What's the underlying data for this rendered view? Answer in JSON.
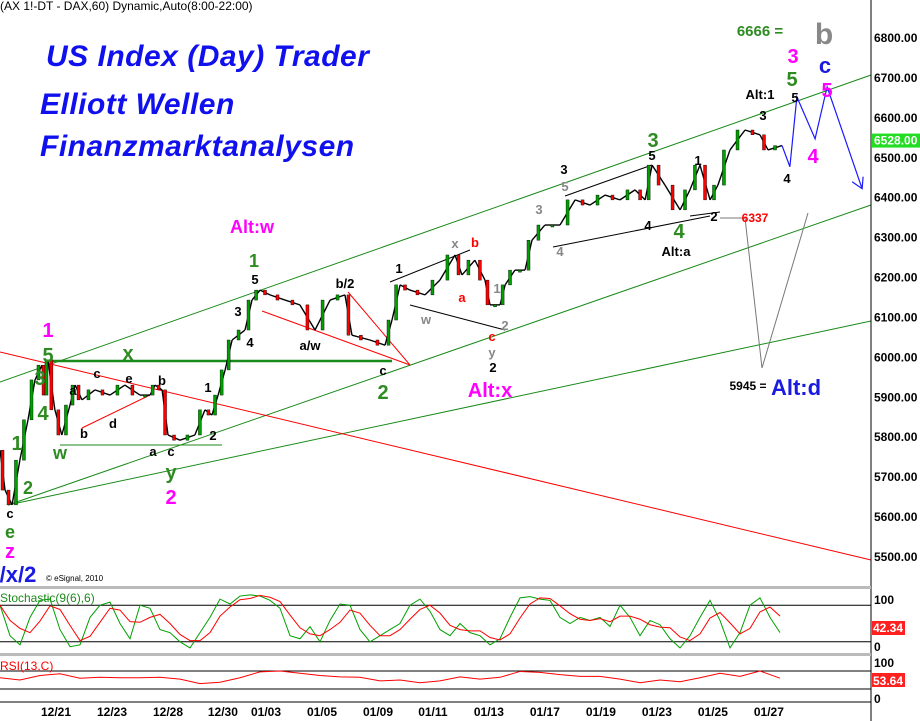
{
  "header": {
    "symbol_line": "(AX 1!-DT - DAX,60) Dynamic,Auto(8:00-22:00)"
  },
  "titles": [
    "US Index (Day) Trader",
    "Elliott Wellen",
    "Finanzmarktanalysen"
  ],
  "copyright": "© eSignal, 2010",
  "colors": {
    "up": "#00a000",
    "down": "#ff0000",
    "title": "#1010ee",
    "channel": "#1a8a1a",
    "wave_green": "#2e8b22",
    "wave_magenta": "#ff00ff",
    "forecast": "#1a1aff",
    "last_price_bg": "#22dd22",
    "indicator_value_bg": "#ff2020"
  },
  "chart_data": [
    {
      "type": "line",
      "title": "",
      "ylabel": "",
      "ylim": [
        5450,
        6870
      ],
      "yticks": [
        "6800.00",
        "6700.00",
        "6600.00",
        "6500.00",
        "6400.00",
        "6300.00",
        "6200.00",
        "6100.00",
        "6000.00",
        "5900.00",
        "5800.00",
        "5700.00",
        "5600.00",
        "5500.00"
      ],
      "last_price": "6528.00",
      "x_unit": "session",
      "xticks": [
        {
          "label": "12/21",
          "x": 2.0
        },
        {
          "label": "12/23",
          "x": 4.0
        },
        {
          "label": "12/28",
          "x": 6.0
        },
        {
          "label": "12/30",
          "x": 7.96
        },
        {
          "label": "01/03",
          "x": 9.5
        },
        {
          "label": "01/05",
          "x": 11.5
        },
        {
          "label": "01/09",
          "x": 13.5
        },
        {
          "label": "01/11",
          "x": 15.46
        },
        {
          "label": "01/13",
          "x": 17.46
        },
        {
          "label": "01/17",
          "x": 19.46
        },
        {
          "label": "01/19",
          "x": 21.46
        },
        {
          "label": "01/23",
          "x": 23.46
        },
        {
          "label": "01/25",
          "x": 25.46
        },
        {
          "label": "01/27",
          "x": 27.46
        }
      ],
      "series": [
        {
          "points": [
            [
              0,
              5765
            ],
            [
              0.18,
              5665
            ],
            [
              0.43,
              5628
            ],
            [
              0.71,
              5740
            ],
            [
              1.0,
              5841
            ],
            [
              1.25,
              5941
            ],
            [
              1.5,
              5978
            ],
            [
              1.61,
              5903
            ],
            [
              1.71,
              5991
            ],
            [
              1.96,
              5866
            ],
            [
              2.21,
              5803
            ],
            [
              2.5,
              5878
            ],
            [
              2.68,
              5928
            ],
            [
              2.93,
              5891
            ],
            [
              3.39,
              5916
            ],
            [
              3.93,
              5903
            ],
            [
              4.46,
              5928
            ],
            [
              5.0,
              5903
            ],
            [
              5.36,
              5903
            ],
            [
              5.54,
              5928
            ],
            [
              5.79,
              5916
            ],
            [
              6.0,
              5803
            ],
            [
              6.43,
              5790
            ],
            [
              6.96,
              5803
            ],
            [
              7.32,
              5866
            ],
            [
              7.57,
              5853
            ],
            [
              7.79,
              5903
            ],
            [
              8.04,
              5966
            ],
            [
              8.29,
              6041
            ],
            [
              8.75,
              6066
            ],
            [
              9.0,
              6141
            ],
            [
              9.29,
              6166
            ],
            [
              9.64,
              6154
            ],
            [
              10.18,
              6141
            ],
            [
              10.71,
              6129
            ],
            [
              11.25,
              6066
            ],
            [
              11.79,
              6141
            ],
            [
              12.32,
              6154
            ],
            [
              12.57,
              6053
            ],
            [
              13.21,
              6041
            ],
            [
              13.75,
              6028
            ],
            [
              14.0,
              6091
            ],
            [
              14.29,
              6179
            ],
            [
              14.64,
              6166
            ],
            [
              15.18,
              6154
            ],
            [
              15.71,
              6191
            ],
            [
              16.25,
              6254
            ],
            [
              16.5,
              6204
            ],
            [
              16.96,
              6241
            ],
            [
              17.32,
              6191
            ],
            [
              17.5,
              6129
            ],
            [
              17.86,
              6129
            ],
            [
              18.04,
              6179
            ],
            [
              18.39,
              6216
            ],
            [
              18.75,
              6216
            ],
            [
              19.0,
              6291
            ],
            [
              19.46,
              6329
            ],
            [
              20.0,
              6329
            ],
            [
              20.54,
              6392
            ],
            [
              21.07,
              6379
            ],
            [
              21.61,
              6404
            ],
            [
              22.14,
              6392
            ],
            [
              22.68,
              6417
            ],
            [
              23.04,
              6392
            ],
            [
              23.29,
              6479
            ],
            [
              23.75,
              6429
            ],
            [
              24.29,
              6367
            ],
            [
              24.64,
              6417
            ],
            [
              25.0,
              6479
            ],
            [
              25.36,
              6392
            ],
            [
              25.64,
              6429
            ],
            [
              26.07,
              6517
            ],
            [
              26.61,
              6567
            ],
            [
              27.14,
              6555
            ],
            [
              27.43,
              6517
            ],
            [
              27.93,
              6528
            ]
          ]
        }
      ],
      "levels": {
        "6337": "6337",
        "5945": "5945 =",
        "6666": "6666 ="
      },
      "forecast_path": [
        [
          27.93,
          6528
        ],
        [
          28.21,
          6475
        ],
        [
          28.46,
          6650
        ],
        [
          29.11,
          6545
        ],
        [
          29.54,
          6675
        ],
        [
          30.79,
          6420
        ]
      ]
    },
    {
      "type": "line",
      "title": "Stochastic(9(6),6)",
      "ylim": [
        0,
        100
      ],
      "yticks": [
        "100",
        "0"
      ],
      "levels": [
        80,
        20
      ],
      "last_value": "42.34",
      "series": [
        {
          "color": "#00a000",
          "values": [
            80,
            30,
            15,
            60,
            88,
            90,
            40,
            12,
            15,
            60,
            80,
            85,
            50,
            25,
            80,
            75,
            40,
            35,
            20,
            10,
            35,
            60,
            90,
            82,
            95,
            97,
            95,
            88,
            75,
            30,
            25,
            45,
            20,
            55,
            82,
            80,
            40,
            20,
            30,
            40,
            50,
            80,
            90,
            70,
            40,
            30,
            50,
            35,
            30,
            15,
            25,
            60,
            92,
            94,
            90,
            88,
            60,
            50,
            60,
            55,
            60,
            45,
            80,
            60,
            30,
            55,
            48,
            25,
            10,
            30,
            60,
            88,
            55,
            10,
            35,
            80,
            92,
            60,
            35
          ]
        },
        {
          "color": "#ff0000",
          "values": [
            80,
            55,
            42,
            35,
            54,
            79,
            73,
            47,
            22,
            29,
            52,
            75,
            72,
            53,
            52,
            60,
            65,
            50,
            32,
            22,
            22,
            35,
            62,
            77,
            89,
            91,
            96,
            93,
            86,
            64,
            43,
            33,
            30,
            40,
            52,
            72,
            67,
            47,
            30,
            30,
            40,
            57,
            73,
            80,
            67,
            47,
            40,
            38,
            38,
            27,
            23,
            33,
            59,
            82,
            92,
            91,
            79,
            66,
            57,
            55,
            58,
            53,
            62,
            62,
            57,
            48,
            44,
            43,
            28,
            22,
            33,
            59,
            68,
            51,
            33,
            42,
            69,
            77,
            62
          ]
        }
      ]
    },
    {
      "type": "line",
      "title": "RSI(13,C)",
      "ylim": [
        0,
        100
      ],
      "yticks": [
        "100",
        "0"
      ],
      "levels": [
        70,
        30
      ],
      "last_value": "53.64",
      "series": [
        {
          "color": "#ff0000",
          "values": [
            55,
            50,
            60,
            64,
            54,
            56,
            55,
            55,
            56,
            52,
            42,
            45,
            55,
            68,
            70,
            65,
            60,
            57,
            56,
            48,
            50,
            44,
            48,
            57,
            52,
            56,
            69,
            67,
            62,
            58,
            58,
            52,
            44,
            50,
            46,
            55,
            65,
            58,
            70,
            54
          ]
        }
      ]
    }
  ],
  "annotations": [
    {
      "text": "1",
      "color": "#2e8b22"
    },
    {
      "text": "2",
      "color": "#2e8b22"
    },
    {
      "text": "3",
      "color": "#2e8b22"
    },
    {
      "text": "4",
      "color": "#2e8b22"
    },
    {
      "text": "5",
      "color": "#2e8b22"
    },
    {
      "text": "w",
      "color": "#2e8b22"
    },
    {
      "text": "x",
      "color": "#2e8b22"
    },
    {
      "text": "y",
      "color": "#2e8b22"
    },
    {
      "text": "e",
      "color": "#2e8b22"
    },
    {
      "text": "1",
      "color": "#2e8b22"
    },
    {
      "text": "2",
      "color": "#2e8b22"
    },
    {
      "text": "3",
      "color": "#2e8b22"
    },
    {
      "text": "4",
      "color": "#2e8b22"
    },
    {
      "text": "5",
      "color": "#2e8b22"
    },
    {
      "text": "1",
      "color": "#ff00ff"
    },
    {
      "text": "z",
      "color": "#ff00ff"
    },
    {
      "text": "2",
      "color": "#ff00ff"
    },
    {
      "text": "Alt:w",
      "color": "#ff00ff"
    },
    {
      "text": "Alt:x",
      "color": "#ff00ff"
    },
    {
      "text": "3",
      "color": "#ff00ff"
    },
    {
      "text": "4",
      "color": "#ff00ff"
    },
    {
      "text": "5",
      "color": "#ff00ff"
    },
    {
      "text": "/x/2",
      "color": "#1a1ae0"
    },
    {
      "text": "c",
      "color": "#1a1ae0"
    },
    {
      "text": "Alt:d",
      "color": "#1a1ae0"
    },
    {
      "text": "b",
      "color": "#888888"
    },
    {
      "text": "6666 =",
      "color": "#2e8b22"
    },
    {
      "text": "c",
      "color": "#000000"
    },
    {
      "text": "a",
      "color": "#000000"
    },
    {
      "text": "c",
      "color": "#000000"
    },
    {
      "text": "e",
      "color": "#000000"
    },
    {
      "text": "b",
      "color": "#000000"
    },
    {
      "text": "b",
      "color": "#000000"
    },
    {
      "text": "d",
      "color": "#000000"
    },
    {
      "text": "a",
      "color": "#000000"
    },
    {
      "text": "c",
      "color": "#000000"
    },
    {
      "text": "1",
      "color": "#000000"
    },
    {
      "text": "2",
      "color": "#000000"
    },
    {
      "text": "3",
      "color": "#000000"
    },
    {
      "text": "4",
      "color": "#000000"
    },
    {
      "text": "5",
      "color": "#000000"
    },
    {
      "text": "a/w",
      "color": "#000000"
    },
    {
      "text": "b/2",
      "color": "#000000"
    },
    {
      "text": "c",
      "color": "#000000"
    },
    {
      "text": "1",
      "color": "#000000"
    },
    {
      "text": "2",
      "color": "#000000"
    },
    {
      "text": "3",
      "color": "#000000"
    },
    {
      "text": "5",
      "color": "#000000"
    },
    {
      "text": "4",
      "color": "#000000"
    },
    {
      "text": "Alt:a",
      "color": "#000000"
    },
    {
      "text": "1",
      "color": "#000000"
    },
    {
      "text": "2",
      "color": "#000000"
    },
    {
      "text": "Alt:1",
      "color": "#000000"
    },
    {
      "text": "3",
      "color": "#000000"
    },
    {
      "text": "5",
      "color": "#000000"
    },
    {
      "text": "4",
      "color": "#000000"
    },
    {
      "text": "x",
      "color": "#888888"
    },
    {
      "text": "w",
      "color": "#888888"
    },
    {
      "text": "1",
      "color": "#888888"
    },
    {
      "text": "2",
      "color": "#888888"
    },
    {
      "text": "y",
      "color": "#888888"
    },
    {
      "text": "3",
      "color": "#888888"
    },
    {
      "text": "5",
      "color": "#888888"
    },
    {
      "text": "4",
      "color": "#888888"
    },
    {
      "text": "b",
      "color": "#ff0000"
    },
    {
      "text": "a",
      "color": "#ff0000"
    },
    {
      "text": "c",
      "color": "#ff0000"
    },
    {
      "text": "6337",
      "color": "#ff0000"
    },
    {
      "text": "5945 =",
      "color": "#000000"
    }
  ]
}
